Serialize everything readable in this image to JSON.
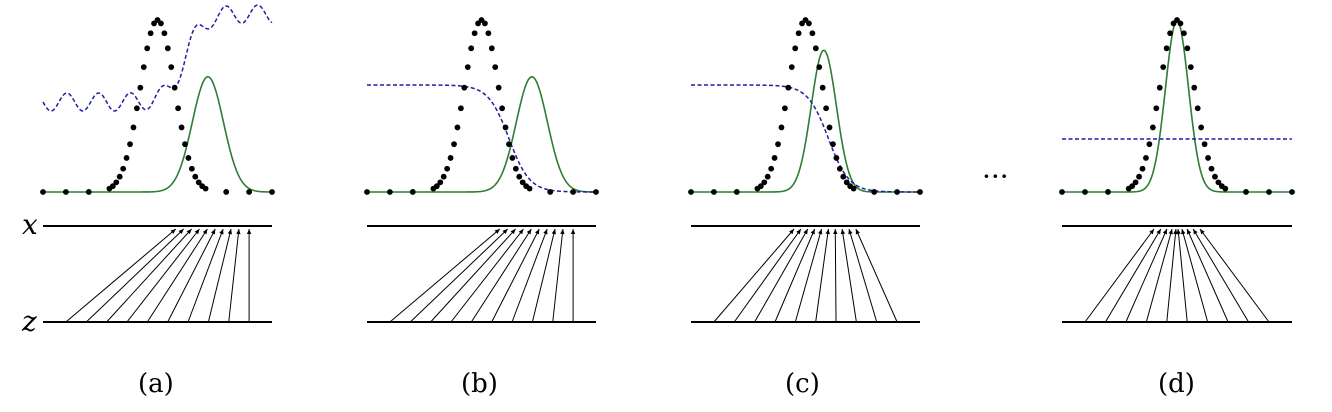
{
  "axis_labels": {
    "x": "x",
    "z": "z"
  },
  "ellipsis": "···",
  "legend_colors": {
    "data_distribution": "#000000",
    "generative_distribution": "#2e7d32",
    "discriminator": "#1f1fa0"
  },
  "panels": [
    {
      "id": "a",
      "caption": "(a)",
      "generated_mean_offset": 0.22,
      "generated_sigma": 0.068,
      "discriminator": "wavy",
      "mapping": "left-skewed"
    },
    {
      "id": "b",
      "caption": "(b)",
      "generated_mean_offset": 0.22,
      "generated_sigma": 0.068,
      "discriminator": "sigmoid",
      "mapping": "left-skewed"
    },
    {
      "id": "c",
      "caption": "(c)",
      "generated_mean_offset": 0.08,
      "generated_sigma": 0.055,
      "discriminator": "sigmoid",
      "mapping": "converging"
    },
    {
      "id": "d",
      "caption": "(d)",
      "generated_mean_offset": 0.0,
      "generated_sigma": 0.05,
      "discriminator": "flat",
      "mapping": "matched"
    }
  ]
}
